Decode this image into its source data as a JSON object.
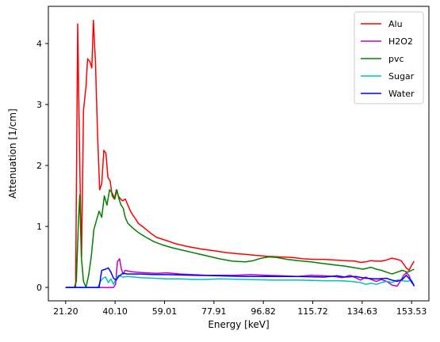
{
  "chart_data": {
    "type": "line",
    "title": "",
    "xlabel": "Energy [keV]",
    "ylabel": "Attenuation [1/cm]",
    "xlim": [
      14.58,
      160.15
    ],
    "ylim": [
      -0.22,
      4.61
    ],
    "xticks": [
      21.2,
      40.1,
      59.01,
      77.91,
      96.82,
      115.72,
      134.63,
      153.53
    ],
    "xtick_labels": [
      "21.20",
      "40.10",
      "59.01",
      "77.91",
      "96.82",
      "115.72",
      "134.63",
      "153.53"
    ],
    "yticks": [
      0,
      1,
      2,
      3,
      4
    ],
    "ytick_labels": [
      "0",
      "1",
      "2",
      "3",
      "4"
    ],
    "grid": false,
    "legend_position": "top-right",
    "series": [
      {
        "name": "Alu",
        "color": "#ff0000",
        "points": [
          [
            21.2,
            0
          ],
          [
            24.0,
            0
          ],
          [
            25.0,
            0
          ],
          [
            25.8,
            4.32
          ],
          [
            26.6,
            2.0
          ],
          [
            27.3,
            0.5
          ],
          [
            28.0,
            2.9
          ],
          [
            29.0,
            3.3
          ],
          [
            29.6,
            3.75
          ],
          [
            30.5,
            3.7
          ],
          [
            31.2,
            3.6
          ],
          [
            31.8,
            4.38
          ],
          [
            32.6,
            3.7
          ],
          [
            33.4,
            2.5
          ],
          [
            34.2,
            1.6
          ],
          [
            35.0,
            1.7
          ],
          [
            35.8,
            2.25
          ],
          [
            36.6,
            2.2
          ],
          [
            37.4,
            1.8
          ],
          [
            38.2,
            1.75
          ],
          [
            39.0,
            1.5
          ],
          [
            39.8,
            1.45
          ],
          [
            40.6,
            1.6
          ],
          [
            41.4,
            1.5
          ],
          [
            42.2,
            1.45
          ],
          [
            43.0,
            1.42
          ],
          [
            44.0,
            1.45
          ],
          [
            45.0,
            1.35
          ],
          [
            46.0,
            1.25
          ],
          [
            47.0,
            1.18
          ],
          [
            48.0,
            1.12
          ],
          [
            49.0,
            1.05
          ],
          [
            50.0,
            1.02
          ],
          [
            52.0,
            0.95
          ],
          [
            54.0,
            0.88
          ],
          [
            56.0,
            0.82
          ],
          [
            59.0,
            0.78
          ],
          [
            63.0,
            0.72
          ],
          [
            68.0,
            0.67
          ],
          [
            73.0,
            0.63
          ],
          [
            78.0,
            0.6
          ],
          [
            83.0,
            0.57
          ],
          [
            88.0,
            0.55
          ],
          [
            93.0,
            0.53
          ],
          [
            98.0,
            0.51
          ],
          [
            103.0,
            0.5
          ],
          [
            108.0,
            0.49
          ],
          [
            112.0,
            0.47
          ],
          [
            116.0,
            0.46
          ],
          [
            120.0,
            0.46
          ],
          [
            124.0,
            0.45
          ],
          [
            128.0,
            0.44
          ],
          [
            132.0,
            0.43
          ],
          [
            134.0,
            0.41
          ],
          [
            136.0,
            0.42
          ],
          [
            138.0,
            0.44
          ],
          [
            140.0,
            0.43
          ],
          [
            142.0,
            0.43
          ],
          [
            144.0,
            0.45
          ],
          [
            146.0,
            0.48
          ],
          [
            148.0,
            0.46
          ],
          [
            149.5,
            0.44
          ],
          [
            150.5,
            0.38
          ],
          [
            151.5,
            0.32
          ],
          [
            152.5,
            0.28
          ],
          [
            153.5,
            0.36
          ],
          [
            154.5,
            0.43
          ]
        ]
      },
      {
        "name": "H2O2",
        "color": "#bf00bf",
        "points": [
          [
            21.2,
            0
          ],
          [
            38.0,
            0
          ],
          [
            39.5,
            0
          ],
          [
            40.3,
            0.05
          ],
          [
            41.0,
            0.42
          ],
          [
            41.8,
            0.47
          ],
          [
            42.5,
            0.3
          ],
          [
            43.2,
            0.22
          ],
          [
            44.0,
            0.28
          ],
          [
            46.0,
            0.26
          ],
          [
            48.0,
            0.25
          ],
          [
            52.0,
            0.24
          ],
          [
            56.0,
            0.23
          ],
          [
            60.0,
            0.24
          ],
          [
            65.0,
            0.22
          ],
          [
            70.0,
            0.21
          ],
          [
            75.0,
            0.2
          ],
          [
            80.0,
            0.2
          ],
          [
            86.0,
            0.2
          ],
          [
            92.0,
            0.21
          ],
          [
            98.0,
            0.2
          ],
          [
            104.0,
            0.19
          ],
          [
            110.0,
            0.18
          ],
          [
            115.0,
            0.2
          ],
          [
            120.0,
            0.19
          ],
          [
            124.0,
            0.18
          ],
          [
            127.0,
            0.16
          ],
          [
            130.0,
            0.2
          ],
          [
            132.0,
            0.16
          ],
          [
            134.0,
            0.12
          ],
          [
            136.0,
            0.17
          ],
          [
            138.0,
            0.13
          ],
          [
            140.0,
            0.1
          ],
          [
            142.0,
            0.13
          ],
          [
            144.0,
            0.1
          ],
          [
            146.0,
            0.04
          ],
          [
            148.0,
            0.02
          ],
          [
            149.5,
            0.12
          ],
          [
            150.5,
            0.2
          ],
          [
            151.5,
            0.24
          ],
          [
            152.5,
            0.2
          ],
          [
            153.5,
            0.08
          ],
          [
            154.5,
            0.05
          ]
        ]
      },
      {
        "name": "pvc",
        "color": "#008000",
        "points": [
          [
            21.2,
            0
          ],
          [
            24.5,
            0
          ],
          [
            25.3,
            0.1
          ],
          [
            26.0,
            1.0
          ],
          [
            26.6,
            1.52
          ],
          [
            27.2,
            0.5
          ],
          [
            28.0,
            0.1
          ],
          [
            29.0,
            0
          ],
          [
            30.0,
            0.2
          ],
          [
            31.0,
            0.5
          ],
          [
            32.0,
            0.95
          ],
          [
            33.0,
            1.1
          ],
          [
            34.0,
            1.25
          ],
          [
            35.0,
            1.15
          ],
          [
            36.0,
            1.5
          ],
          [
            37.0,
            1.35
          ],
          [
            38.0,
            1.6
          ],
          [
            39.0,
            1.55
          ],
          [
            40.0,
            1.45
          ],
          [
            40.8,
            1.6
          ],
          [
            41.6,
            1.45
          ],
          [
            42.4,
            1.35
          ],
          [
            43.2,
            1.3
          ],
          [
            44.0,
            1.15
          ],
          [
            45.0,
            1.05
          ],
          [
            47.0,
            0.97
          ],
          [
            49.0,
            0.9
          ],
          [
            52.0,
            0.82
          ],
          [
            55.0,
            0.75
          ],
          [
            58.0,
            0.7
          ],
          [
            62.0,
            0.65
          ],
          [
            66.0,
            0.61
          ],
          [
            70.0,
            0.57
          ],
          [
            75.0,
            0.52
          ],
          [
            80.0,
            0.47
          ],
          [
            85.0,
            0.43
          ],
          [
            90.0,
            0.42
          ],
          [
            93.0,
            0.44
          ],
          [
            96.0,
            0.48
          ],
          [
            99.0,
            0.5
          ],
          [
            102.0,
            0.49
          ],
          [
            106.0,
            0.46
          ],
          [
            110.0,
            0.44
          ],
          [
            115.0,
            0.42
          ],
          [
            120.0,
            0.39
          ],
          [
            124.0,
            0.37
          ],
          [
            128.0,
            0.35
          ],
          [
            132.0,
            0.32
          ],
          [
            135.0,
            0.3
          ],
          [
            138.0,
            0.33
          ],
          [
            140.0,
            0.3
          ],
          [
            142.0,
            0.28
          ],
          [
            144.0,
            0.25
          ],
          [
            146.0,
            0.22
          ],
          [
            148.0,
            0.25
          ],
          [
            150.0,
            0.28
          ],
          [
            152.0,
            0.25
          ],
          [
            153.5,
            0.28
          ],
          [
            154.5,
            0.3
          ]
        ]
      },
      {
        "name": "Sugar",
        "color": "#00bfbf",
        "points": [
          [
            21.2,
            0
          ],
          [
            33.5,
            0
          ],
          [
            34.5,
            0.1
          ],
          [
            35.5,
            0.15
          ],
          [
            36.5,
            0.17
          ],
          [
            37.5,
            0.08
          ],
          [
            38.5,
            0.14
          ],
          [
            39.5,
            0.05
          ],
          [
            40.5,
            0.15
          ],
          [
            41.5,
            0.2
          ],
          [
            43.0,
            0.17
          ],
          [
            45.0,
            0.18
          ],
          [
            50.0,
            0.16
          ],
          [
            55.0,
            0.15
          ],
          [
            60.0,
            0.14
          ],
          [
            65.0,
            0.14
          ],
          [
            70.0,
            0.13
          ],
          [
            75.0,
            0.13
          ],
          [
            80.0,
            0.14
          ],
          [
            90.0,
            0.13
          ],
          [
            100.0,
            0.12
          ],
          [
            110.0,
            0.12
          ],
          [
            120.0,
            0.11
          ],
          [
            126.0,
            0.11
          ],
          [
            130.0,
            0.1
          ],
          [
            134.0,
            0.08
          ],
          [
            136.0,
            0.05
          ],
          [
            138.0,
            0.07
          ],
          [
            140.0,
            0.05
          ],
          [
            142.0,
            0.08
          ],
          [
            144.0,
            0.1
          ],
          [
            146.0,
            0.08
          ],
          [
            148.0,
            0.12
          ],
          [
            150.0,
            0.11
          ],
          [
            152.0,
            0.1
          ],
          [
            153.5,
            0.12
          ],
          [
            154.5,
            0.02
          ]
        ]
      },
      {
        "name": "Water",
        "color": "#0000ff",
        "points": [
          [
            21.2,
            0
          ],
          [
            34.0,
            0
          ],
          [
            35.0,
            0.28
          ],
          [
            36.5,
            0.3
          ],
          [
            37.5,
            0.32
          ],
          [
            38.5,
            0.25
          ],
          [
            39.5,
            0.15
          ],
          [
            40.5,
            0.12
          ],
          [
            41.5,
            0.18
          ],
          [
            43.0,
            0.23
          ],
          [
            45.0,
            0.22
          ],
          [
            50.0,
            0.22
          ],
          [
            55.0,
            0.21
          ],
          [
            60.0,
            0.21
          ],
          [
            70.0,
            0.2
          ],
          [
            80.0,
            0.19
          ],
          [
            90.0,
            0.18
          ],
          [
            100.0,
            0.18
          ],
          [
            110.0,
            0.18
          ],
          [
            120.0,
            0.17
          ],
          [
            125.0,
            0.19
          ],
          [
            128.0,
            0.17
          ],
          [
            132.0,
            0.18
          ],
          [
            136.0,
            0.15
          ],
          [
            140.0,
            0.14
          ],
          [
            144.0,
            0.15
          ],
          [
            146.0,
            0.12
          ],
          [
            148.0,
            0.1
          ],
          [
            150.0,
            0.13
          ],
          [
            151.5,
            0.2
          ],
          [
            152.5,
            0.15
          ],
          [
            153.5,
            0.1
          ],
          [
            154.5,
            0.02
          ]
        ]
      }
    ]
  }
}
